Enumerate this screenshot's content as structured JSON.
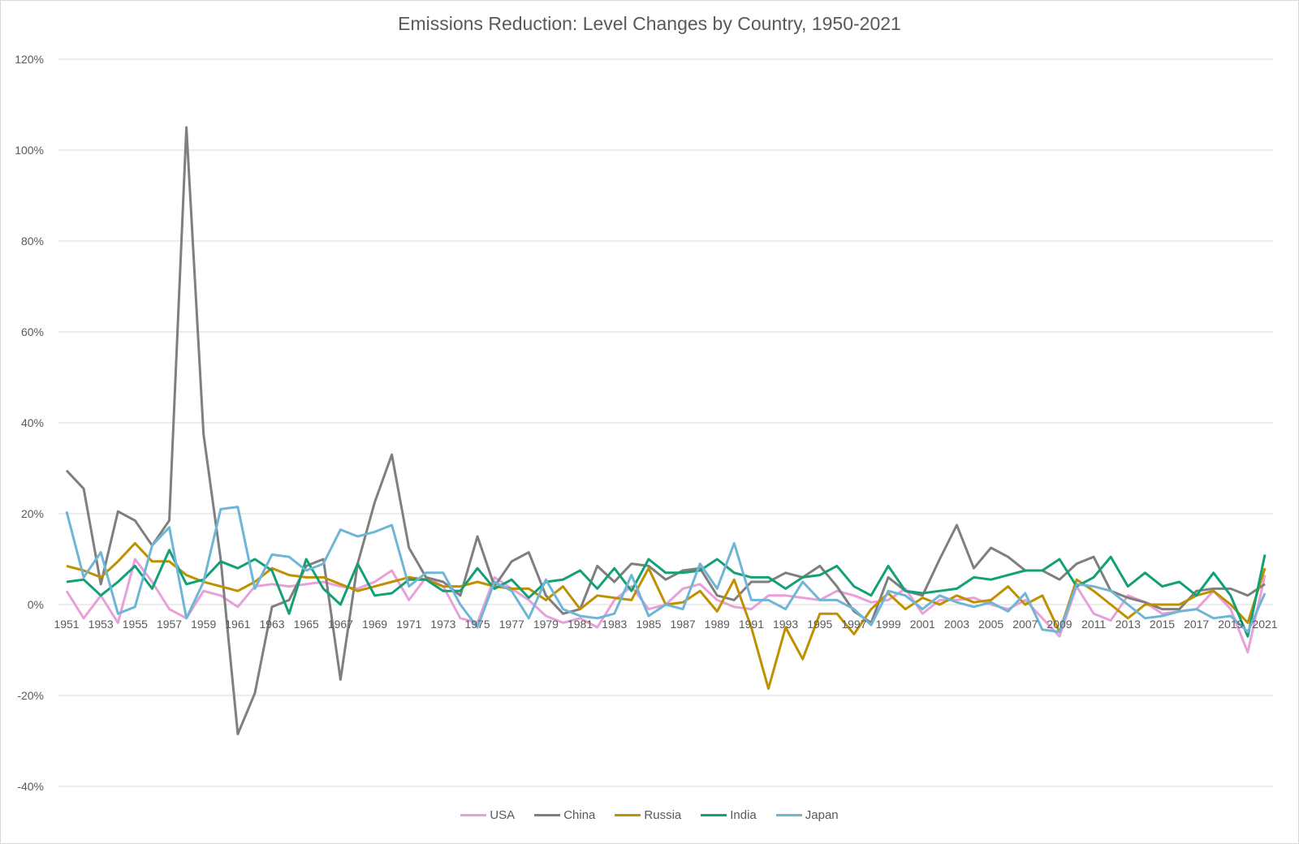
{
  "chart_data": {
    "type": "line",
    "title": "Emissions Reduction: Level Changes by Country, 1950-2021",
    "xlabel": "",
    "ylabel": "",
    "ylim": [
      -40,
      120
    ],
    "yticks": [
      "120%",
      "100%",
      "80%",
      "60%",
      "40%",
      "20%",
      "0%",
      "-20%",
      "-40%"
    ],
    "ytick_values": [
      120,
      100,
      80,
      60,
      40,
      20,
      0,
      -20,
      -40
    ],
    "x": [
      1951,
      1952,
      1953,
      1954,
      1955,
      1956,
      1957,
      1958,
      1959,
      1960,
      1961,
      1962,
      1963,
      1964,
      1965,
      1966,
      1967,
      1968,
      1969,
      1970,
      1971,
      1972,
      1973,
      1974,
      1975,
      1976,
      1977,
      1978,
      1979,
      1980,
      1981,
      1982,
      1983,
      1984,
      1985,
      1986,
      1987,
      1988,
      1989,
      1990,
      1991,
      1992,
      1993,
      1994,
      1995,
      1996,
      1997,
      1998,
      1999,
      2000,
      2001,
      2002,
      2003,
      2004,
      2005,
      2006,
      2007,
      2008,
      2009,
      2010,
      2011,
      2012,
      2013,
      2014,
      2015,
      2016,
      2017,
      2018,
      2019,
      2020,
      2021
    ],
    "xtick_labels": [
      "1951",
      "1953",
      "1955",
      "1957",
      "1959",
      "1961",
      "1963",
      "1965",
      "1967",
      "1969",
      "1971",
      "1973",
      "1975",
      "1977",
      "1979",
      "1981",
      "1983",
      "1985",
      "1987",
      "1989",
      "1991",
      "1993",
      "1995",
      "1997",
      "1999",
      "2001",
      "2003",
      "2005",
      "2007",
      "2009",
      "2011",
      "2013",
      "2015",
      "2017",
      "2019",
      "2021"
    ],
    "grid": true,
    "legend_position": "bottom",
    "series": [
      {
        "name": "USA",
        "color": "#e8a0d8",
        "values": [
          3,
          -3,
          2,
          -4,
          10,
          5,
          -1,
          -3,
          3,
          2,
          -0.5,
          4,
          4.5,
          4,
          4.5,
          5,
          4,
          3.5,
          5,
          7.5,
          1,
          6,
          4,
          -3,
          -4,
          6,
          3.5,
          1,
          -2.5,
          -4,
          -3,
          -5,
          1,
          4,
          -1,
          0,
          3.5,
          4.5,
          1,
          -0.5,
          -1,
          2,
          2,
          1.5,
          1,
          3,
          2,
          0.5,
          1,
          3.5,
          -2,
          1,
          1,
          1.5,
          0,
          -1,
          1,
          -3,
          -7,
          4,
          -2,
          -3.5,
          2,
          0.5,
          -2,
          -1.5,
          -1,
          3,
          -1,
          -10.5,
          6.5
        ]
      },
      {
        "name": "China",
        "color": "#7f7f7f",
        "values": [
          29.5,
          25.5,
          4.5,
          20.5,
          18.5,
          13,
          18.5,
          105,
          37.5,
          10,
          -28.5,
          -19.5,
          -0.5,
          1,
          8.5,
          10,
          -16.5,
          9,
          22.5,
          33,
          12.5,
          6,
          5,
          2,
          15,
          4,
          9.5,
          11.5,
          2,
          -2,
          -1,
          8.5,
          5,
          9,
          8.5,
          5.5,
          7.5,
          8,
          2,
          1,
          5,
          5,
          7,
          6,
          8.5,
          4,
          -1.5,
          -4,
          6,
          3,
          2,
          10,
          17.5,
          8,
          12.5,
          10.5,
          7.5,
          7.5,
          5.5,
          9,
          10.5,
          3,
          1.5,
          0.5,
          -1,
          -1,
          3,
          3.5,
          3.5,
          2,
          4.5
        ]
      },
      {
        "name": "Russia",
        "color": "#bf9000",
        "values": [
          8.5,
          7.5,
          6,
          9.5,
          13.5,
          9.5,
          9.5,
          6.5,
          5,
          4,
          3,
          5,
          8,
          6.5,
          6,
          6,
          4.5,
          3,
          4,
          5,
          6,
          5.5,
          4,
          4,
          5,
          4,
          3.5,
          3.5,
          1,
          4,
          -1,
          2,
          1.5,
          1,
          8,
          0,
          0.5,
          3,
          -1.5,
          5.5,
          -5,
          -18.5,
          -5,
          -12,
          -2,
          -2,
          -6.5,
          -1,
          2.5,
          -1,
          1.5,
          0,
          2,
          0.5,
          1,
          4,
          0,
          2,
          -6,
          5.5,
          3,
          0,
          -3,
          0,
          0,
          0,
          2,
          3,
          0,
          -4,
          8
        ]
      },
      {
        "name": "India",
        "color": "#13a077",
        "values": [
          5,
          5.5,
          2,
          5,
          8.5,
          3.5,
          12,
          4.5,
          5.5,
          9.5,
          8,
          10,
          7.5,
          -2,
          10,
          3.5,
          0,
          9,
          2,
          2.5,
          5.5,
          5.5,
          3,
          3,
          8,
          3.5,
          5.5,
          1.5,
          5,
          5.5,
          7.5,
          3.5,
          8,
          3,
          10,
          7,
          7,
          7.5,
          10,
          7,
          6,
          6,
          3.5,
          6,
          6.5,
          8.5,
          4,
          2,
          8.5,
          3,
          2.5,
          3,
          3.5,
          6,
          5.5,
          6.5,
          7.5,
          7.5,
          10,
          4,
          6,
          10.5,
          4,
          7,
          4,
          5,
          2,
          7,
          2,
          -7,
          11
        ]
      },
      {
        "name": "Japan",
        "color": "#6fb6d6",
        "values": [
          20.5,
          6,
          11.5,
          -2,
          -0.5,
          13,
          17,
          -3,
          5,
          21,
          21.5,
          3.5,
          11,
          10.5,
          7.5,
          9,
          16.5,
          15,
          16,
          17.5,
          4,
          7,
          7,
          0,
          -5,
          5,
          3,
          -3,
          5.5,
          -1,
          -2.5,
          -3,
          -2,
          6.5,
          -2.5,
          0,
          -1,
          9,
          3.5,
          13.5,
          1,
          1,
          -1,
          5,
          1,
          1,
          -1,
          -4.5,
          3,
          2,
          -1,
          2,
          0.5,
          -0.5,
          0.5,
          -1.5,
          2.5,
          -5.5,
          -6,
          4.5,
          4,
          3,
          0,
          -3,
          -2.5,
          -1.5,
          -1,
          -3,
          -2.5,
          -6,
          2.5
        ]
      }
    ]
  }
}
